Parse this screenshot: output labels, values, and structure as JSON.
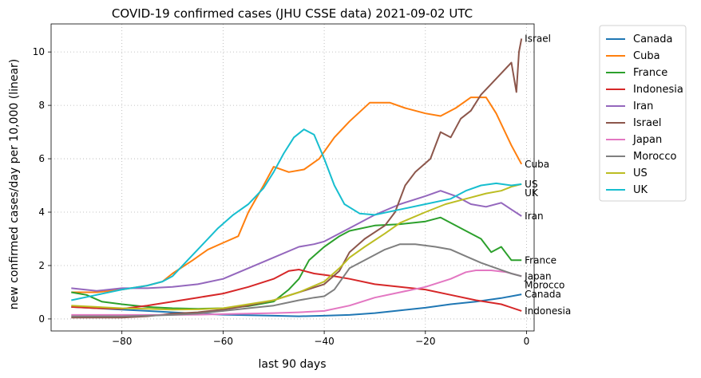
{
  "chart_data": {
    "type": "line",
    "title": "COVID-19 confirmed cases (JHU CSSE data) 2021-09-02 UTC",
    "xlabel": "last 90 days",
    "ylabel": "new confirmed cases/day per 10,000 (linear)",
    "xlim": [
      -94,
      1.5
    ],
    "ylim": [
      -0.45,
      11.05
    ],
    "xticks": [
      -80,
      -60,
      -40,
      -20,
      0
    ],
    "xtick_labels": [
      "−80",
      "−60",
      "−40",
      "−20",
      "0"
    ],
    "yticks": [
      0,
      2,
      4,
      6,
      8,
      10
    ],
    "ytick_labels": [
      "0",
      "2",
      "4",
      "6",
      "8",
      "10"
    ],
    "grid": true,
    "legend_position": "outside-right",
    "series": [
      {
        "name": "Canada",
        "color": "#1f77b4",
        "end_label": "Canada",
        "points": [
          [
            -90,
            0.45
          ],
          [
            -85,
            0.4
          ],
          [
            -80,
            0.35
          ],
          [
            -75,
            0.3
          ],
          [
            -70,
            0.25
          ],
          [
            -65,
            0.2
          ],
          [
            -60,
            0.16
          ],
          [
            -55,
            0.14
          ],
          [
            -50,
            0.12
          ],
          [
            -45,
            0.1
          ],
          [
            -40,
            0.12
          ],
          [
            -35,
            0.15
          ],
          [
            -30,
            0.22
          ],
          [
            -25,
            0.32
          ],
          [
            -20,
            0.42
          ],
          [
            -15,
            0.55
          ],
          [
            -10,
            0.65
          ],
          [
            -5,
            0.78
          ],
          [
            -1,
            0.92
          ]
        ]
      },
      {
        "name": "Cuba",
        "color": "#ff7f0e",
        "end_label": "Cuba",
        "points": [
          [
            -90,
            1.0
          ],
          [
            -85,
            1.0
          ],
          [
            -80,
            1.1
          ],
          [
            -75,
            1.25
          ],
          [
            -72,
            1.4
          ],
          [
            -70,
            1.7
          ],
          [
            -66,
            2.2
          ],
          [
            -63,
            2.6
          ],
          [
            -60,
            2.85
          ],
          [
            -57,
            3.1
          ],
          [
            -55,
            4.0
          ],
          [
            -52,
            5.0
          ],
          [
            -50,
            5.7
          ],
          [
            -47,
            5.5
          ],
          [
            -44,
            5.6
          ],
          [
            -41,
            6.0
          ],
          [
            -38,
            6.8
          ],
          [
            -35,
            7.4
          ],
          [
            -31,
            8.1
          ],
          [
            -27,
            8.1
          ],
          [
            -24,
            7.9
          ],
          [
            -20,
            7.7
          ],
          [
            -17,
            7.6
          ],
          [
            -14,
            7.9
          ],
          [
            -11,
            8.3
          ],
          [
            -8,
            8.3
          ],
          [
            -6,
            7.7
          ],
          [
            -3,
            6.5
          ],
          [
            -1,
            5.8
          ]
        ]
      },
      {
        "name": "France",
        "color": "#2ca02c",
        "end_label": "France",
        "points": [
          [
            -90,
            1.0
          ],
          [
            -87,
            0.9
          ],
          [
            -84,
            0.65
          ],
          [
            -80,
            0.55
          ],
          [
            -75,
            0.45
          ],
          [
            -70,
            0.4
          ],
          [
            -65,
            0.38
          ],
          [
            -60,
            0.4
          ],
          [
            -55,
            0.48
          ],
          [
            -50,
            0.65
          ],
          [
            -47,
            1.1
          ],
          [
            -45,
            1.5
          ],
          [
            -43,
            2.2
          ],
          [
            -40,
            2.7
          ],
          [
            -37,
            3.1
          ],
          [
            -35,
            3.3
          ],
          [
            -30,
            3.5
          ],
          [
            -25,
            3.55
          ],
          [
            -20,
            3.65
          ],
          [
            -17,
            3.8
          ],
          [
            -12,
            3.3
          ],
          [
            -9,
            3.0
          ],
          [
            -7,
            2.5
          ],
          [
            -5,
            2.7
          ],
          [
            -3,
            2.2
          ],
          [
            -1,
            2.2
          ]
        ]
      },
      {
        "name": "Indonesia",
        "color": "#d62728",
        "end_label": "Indonesia",
        "points": [
          [
            -90,
            0.45
          ],
          [
            -85,
            0.4
          ],
          [
            -80,
            0.38
          ],
          [
            -75,
            0.5
          ],
          [
            -70,
            0.65
          ],
          [
            -65,
            0.8
          ],
          [
            -60,
            0.95
          ],
          [
            -55,
            1.2
          ],
          [
            -50,
            1.5
          ],
          [
            -47,
            1.8
          ],
          [
            -45,
            1.85
          ],
          [
            -42,
            1.7
          ],
          [
            -38,
            1.6
          ],
          [
            -35,
            1.5
          ],
          [
            -30,
            1.3
          ],
          [
            -25,
            1.2
          ],
          [
            -20,
            1.1
          ],
          [
            -15,
            0.9
          ],
          [
            -10,
            0.7
          ],
          [
            -5,
            0.55
          ],
          [
            -1,
            0.3
          ]
        ]
      },
      {
        "name": "Iran",
        "color": "#9467bd",
        "end_label": "Iran",
        "points": [
          [
            -90,
            1.15
          ],
          [
            -85,
            1.05
          ],
          [
            -80,
            1.15
          ],
          [
            -75,
            1.15
          ],
          [
            -70,
            1.2
          ],
          [
            -65,
            1.3
          ],
          [
            -60,
            1.5
          ],
          [
            -55,
            1.9
          ],
          [
            -50,
            2.3
          ],
          [
            -45,
            2.7
          ],
          [
            -42,
            2.8
          ],
          [
            -40,
            2.9
          ],
          [
            -35,
            3.4
          ],
          [
            -30,
            3.9
          ],
          [
            -25,
            4.3
          ],
          [
            -20,
            4.6
          ],
          [
            -17,
            4.8
          ],
          [
            -14,
            4.6
          ],
          [
            -11,
            4.3
          ],
          [
            -8,
            4.2
          ],
          [
            -5,
            4.35
          ],
          [
            -3,
            4.1
          ],
          [
            -1,
            3.85
          ]
        ]
      },
      {
        "name": "Israel",
        "color": "#8c564b",
        "end_label": "Israel",
        "points": [
          [
            -90,
            0.05
          ],
          [
            -85,
            0.05
          ],
          [
            -80,
            0.05
          ],
          [
            -75,
            0.1
          ],
          [
            -70,
            0.2
          ],
          [
            -65,
            0.25
          ],
          [
            -60,
            0.35
          ],
          [
            -55,
            0.5
          ],
          [
            -50,
            0.7
          ],
          [
            -45,
            1.0
          ],
          [
            -40,
            1.3
          ],
          [
            -37,
            1.8
          ],
          [
            -35,
            2.5
          ],
          [
            -32,
            3.0
          ],
          [
            -28,
            3.5
          ],
          [
            -26,
            4.0
          ],
          [
            -24,
            5.0
          ],
          [
            -22,
            5.5
          ],
          [
            -19,
            6.0
          ],
          [
            -17,
            7.0
          ],
          [
            -15,
            6.8
          ],
          [
            -13,
            7.5
          ],
          [
            -11,
            7.8
          ],
          [
            -9,
            8.4
          ],
          [
            -7,
            8.8
          ],
          [
            -5,
            9.2
          ],
          [
            -3,
            9.6
          ],
          [
            -2,
            8.5
          ],
          [
            -1.5,
            10.0
          ],
          [
            -1,
            10.5
          ]
        ]
      },
      {
        "name": "Japan",
        "color": "#e377c2",
        "end_label": "Japan",
        "points": [
          [
            -90,
            0.15
          ],
          [
            -85,
            0.15
          ],
          [
            -80,
            0.15
          ],
          [
            -75,
            0.15
          ],
          [
            -70,
            0.15
          ],
          [
            -65,
            0.16
          ],
          [
            -60,
            0.18
          ],
          [
            -55,
            0.2
          ],
          [
            -50,
            0.22
          ],
          [
            -45,
            0.25
          ],
          [
            -40,
            0.3
          ],
          [
            -35,
            0.5
          ],
          [
            -30,
            0.8
          ],
          [
            -25,
            1.0
          ],
          [
            -20,
            1.2
          ],
          [
            -15,
            1.5
          ],
          [
            -12,
            1.75
          ],
          [
            -10,
            1.82
          ],
          [
            -7,
            1.82
          ],
          [
            -4,
            1.75
          ],
          [
            -1,
            1.6
          ]
        ]
      },
      {
        "name": "Morocco",
        "color": "#7f7f7f",
        "end_label": "Morocco",
        "points": [
          [
            -90,
            0.1
          ],
          [
            -85,
            0.1
          ],
          [
            -80,
            0.1
          ],
          [
            -75,
            0.12
          ],
          [
            -70,
            0.15
          ],
          [
            -65,
            0.2
          ],
          [
            -60,
            0.3
          ],
          [
            -55,
            0.4
          ],
          [
            -50,
            0.5
          ],
          [
            -45,
            0.7
          ],
          [
            -42,
            0.8
          ],
          [
            -40,
            0.85
          ],
          [
            -38,
            1.1
          ],
          [
            -35,
            1.9
          ],
          [
            -32,
            2.2
          ],
          [
            -28,
            2.6
          ],
          [
            -25,
            2.8
          ],
          [
            -22,
            2.8
          ],
          [
            -18,
            2.7
          ],
          [
            -15,
            2.6
          ],
          [
            -12,
            2.35
          ],
          [
            -9,
            2.1
          ],
          [
            -6,
            1.9
          ],
          [
            -3,
            1.7
          ],
          [
            -1,
            1.6
          ]
        ]
      },
      {
        "name": "US",
        "color": "#bcbd22",
        "end_label": "US",
        "points": [
          [
            -90,
            0.5
          ],
          [
            -85,
            0.45
          ],
          [
            -80,
            0.4
          ],
          [
            -75,
            0.38
          ],
          [
            -70,
            0.35
          ],
          [
            -65,
            0.36
          ],
          [
            -60,
            0.4
          ],
          [
            -55,
            0.55
          ],
          [
            -50,
            0.7
          ],
          [
            -45,
            1.0
          ],
          [
            -40,
            1.4
          ],
          [
            -37,
            1.9
          ],
          [
            -35,
            2.3
          ],
          [
            -32,
            2.7
          ],
          [
            -28,
            3.2
          ],
          [
            -25,
            3.6
          ],
          [
            -20,
            4.0
          ],
          [
            -16,
            4.3
          ],
          [
            -12,
            4.5
          ],
          [
            -8,
            4.7
          ],
          [
            -5,
            4.8
          ],
          [
            -3,
            4.95
          ],
          [
            -1,
            5.05
          ]
        ]
      },
      {
        "name": "UK",
        "color": "#17becf",
        "end_label": "UK",
        "points": [
          [
            -90,
            0.7
          ],
          [
            -85,
            0.9
          ],
          [
            -80,
            1.1
          ],
          [
            -75,
            1.25
          ],
          [
            -72,
            1.4
          ],
          [
            -70,
            1.6
          ],
          [
            -67,
            2.2
          ],
          [
            -64,
            2.8
          ],
          [
            -61,
            3.4
          ],
          [
            -58,
            3.9
          ],
          [
            -55,
            4.3
          ],
          [
            -52,
            4.9
          ],
          [
            -50,
            5.5
          ],
          [
            -48,
            6.2
          ],
          [
            -46,
            6.8
          ],
          [
            -44,
            7.1
          ],
          [
            -42,
            6.9
          ],
          [
            -40,
            6.0
          ],
          [
            -38,
            5.0
          ],
          [
            -36,
            4.3
          ],
          [
            -33,
            3.95
          ],
          [
            -30,
            3.9
          ],
          [
            -25,
            4.1
          ],
          [
            -20,
            4.3
          ],
          [
            -15,
            4.5
          ],
          [
            -12,
            4.8
          ],
          [
            -9,
            5.0
          ],
          [
            -6,
            5.08
          ],
          [
            -3,
            5.0
          ],
          [
            -1,
            5.05
          ]
        ]
      }
    ]
  }
}
